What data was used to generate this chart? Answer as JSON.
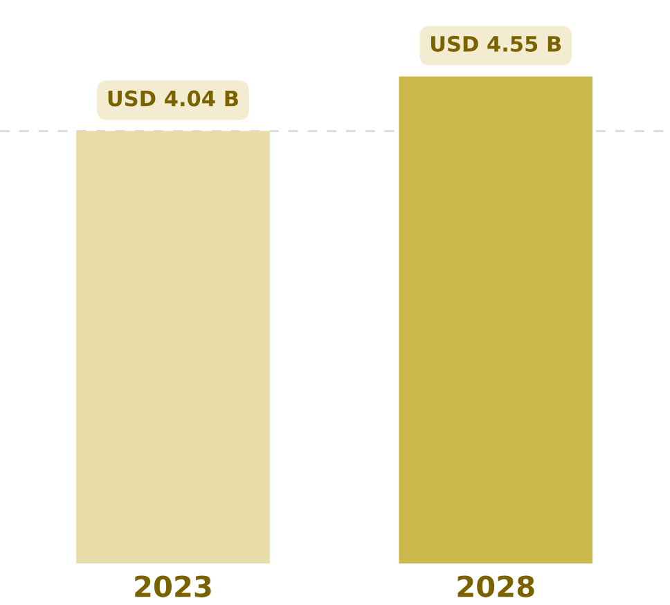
{
  "chart_data": {
    "type": "bar",
    "categories": [
      "2023",
      "2028"
    ],
    "values": [
      4.04,
      4.55
    ],
    "colors": [
      "#e8dda8",
      "#cbb84a"
    ],
    "value_labels": [
      "USD 4.04 B",
      "USD 4.55 B"
    ],
    "ref_lines": [
      {
        "axis": "y",
        "value": 4.04,
        "label": null,
        "color": "#d9d9d9",
        "line_style": "dashed"
      }
    ]
  }
}
